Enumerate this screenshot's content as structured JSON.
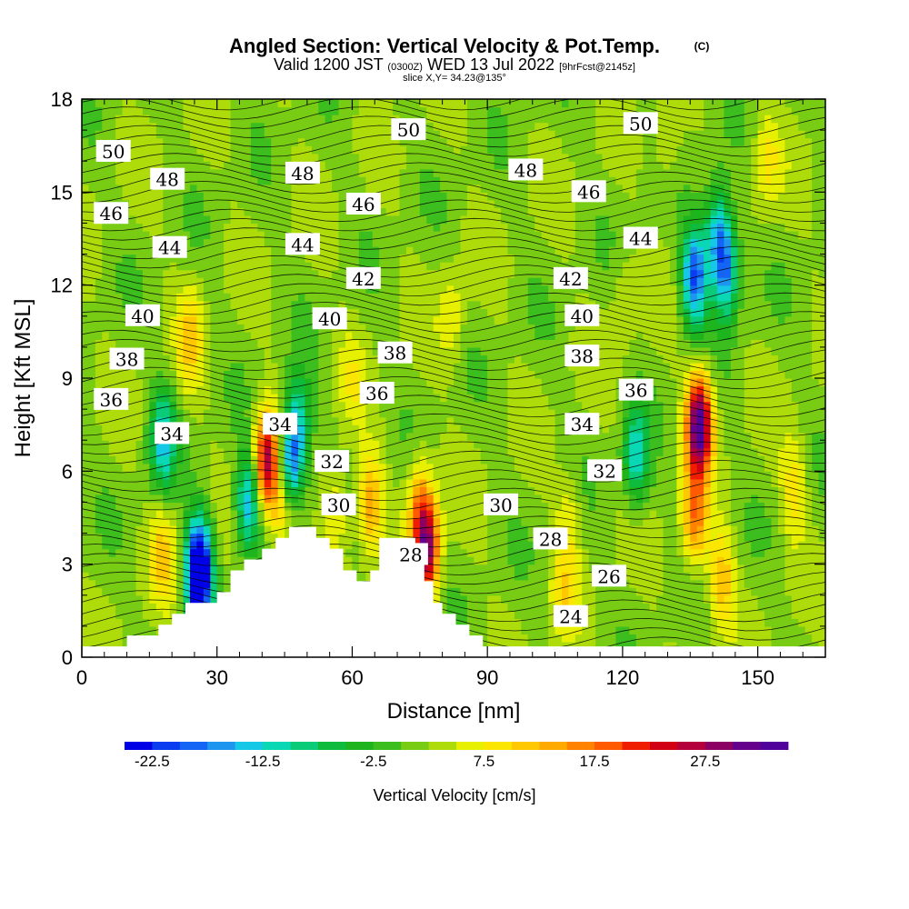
{
  "title": {
    "main": "Angled Section: Vertical Velocity & Pot.Temp.",
    "main_unit": "(C)",
    "valid_prefix": "Valid 1200 JST",
    "valid_utc": "(0300Z)",
    "valid_date": "WED 13 Jul 2022",
    "forecast": "[9hrFcst@2145z]",
    "slice": "slice X,Y= 34.23@135°"
  },
  "chart_data": {
    "type": "heatmap",
    "xlabel": "Distance [nm]",
    "ylabel": "Height [Kft MSL]",
    "xlim": [
      0,
      165
    ],
    "ylim": [
      0,
      18
    ],
    "xticks": [
      "0",
      "30",
      "60",
      "90",
      "120",
      "150"
    ],
    "yticks": [
      "0",
      "3",
      "6",
      "9",
      "12",
      "15",
      "18"
    ],
    "xtick_values": [
      0,
      30,
      60,
      90,
      120,
      150
    ],
    "ytick_values": [
      0,
      3,
      6,
      9,
      12,
      15,
      18
    ],
    "colorbar": {
      "label": "Vertical Velocity [cm/s]",
      "min": -25,
      "max": 35,
      "step": 2.5,
      "tick_labels": [
        "-22.5",
        "-12.5",
        "-2.5",
        "7.5",
        "17.5",
        "27.5"
      ],
      "tick_values": [
        -22.5,
        -12.5,
        -2.5,
        7.5,
        17.5,
        27.5
      ],
      "colors": [
        "#0000e6",
        "#0a3cf0",
        "#1464f5",
        "#1e96f0",
        "#14c8e6",
        "#0ad7b4",
        "#0acb78",
        "#0fbb3c",
        "#1eb41e",
        "#3cbe1e",
        "#78cc14",
        "#aedc0a",
        "#e6f000",
        "#fae600",
        "#ffc800",
        "#ffaa00",
        "#ff8200",
        "#ff5a00",
        "#f01e00",
        "#d20014",
        "#b4003c",
        "#8c0064",
        "#64008c",
        "#50009b"
      ]
    },
    "terrain_nm_kft": [
      [
        0,
        0.35
      ],
      [
        10,
        0.35
      ],
      [
        10,
        0.7
      ],
      [
        17,
        0.7
      ],
      [
        17,
        1.05
      ],
      [
        20,
        1.05
      ],
      [
        20,
        1.4
      ],
      [
        23,
        1.4
      ],
      [
        23,
        1.75
      ],
      [
        30,
        1.75
      ],
      [
        30,
        2.1
      ],
      [
        33,
        2.1
      ],
      [
        33,
        2.8
      ],
      [
        36,
        2.8
      ],
      [
        36,
        3.15
      ],
      [
        40,
        3.15
      ],
      [
        40,
        3.5
      ],
      [
        43,
        3.5
      ],
      [
        43,
        3.85
      ],
      [
        46,
        3.85
      ],
      [
        46,
        4.2
      ],
      [
        52,
        4.2
      ],
      [
        52,
        3.85
      ],
      [
        55,
        3.85
      ],
      [
        55,
        3.5
      ],
      [
        58,
        3.5
      ],
      [
        58,
        2.8
      ],
      [
        61,
        2.8
      ],
      [
        61,
        2.45
      ],
      [
        64,
        2.45
      ],
      [
        64,
        2.8
      ],
      [
        66,
        2.8
      ],
      [
        66,
        3.85
      ],
      [
        74,
        3.85
      ],
      [
        74,
        3.15
      ],
      [
        76,
        3.15
      ],
      [
        76,
        2.45
      ],
      [
        78,
        2.45
      ],
      [
        78,
        1.75
      ],
      [
        80,
        1.75
      ],
      [
        80,
        1.4
      ],
      [
        83,
        1.4
      ],
      [
        83,
        1.05
      ],
      [
        86,
        1.05
      ],
      [
        86,
        0.7
      ],
      [
        89,
        0.7
      ],
      [
        89,
        0.35
      ],
      [
        165,
        0.35
      ]
    ],
    "vertical_velocity_features": [
      {
        "x": 137,
        "y": 7.5,
        "value": 34
      },
      {
        "x": 136,
        "y": 4.5,
        "value": 16
      },
      {
        "x": 142,
        "y": 2.5,
        "value": 12
      },
      {
        "x": 41,
        "y": 6.3,
        "value": 27
      },
      {
        "x": 45,
        "y": 5.0,
        "value": 16
      },
      {
        "x": 76.5,
        "y": 3.5,
        "value": 28
      },
      {
        "x": 75,
        "y": 5.0,
        "value": 12
      },
      {
        "x": 64,
        "y": 5.0,
        "value": 14
      },
      {
        "x": 56.5,
        "y": 4.7,
        "value": 9
      },
      {
        "x": 37,
        "y": 5.0,
        "value": -16
      },
      {
        "x": 46,
        "y": 6.0,
        "value": -20
      },
      {
        "x": 48,
        "y": 7.5,
        "value": -12
      },
      {
        "x": 26,
        "y": 3.0,
        "value": -22
      },
      {
        "x": 26,
        "y": 2.3,
        "value": -14
      },
      {
        "x": 18,
        "y": 7.0,
        "value": -13
      },
      {
        "x": 18,
        "y": 3.4,
        "value": 10
      },
      {
        "x": 24,
        "y": 10.3,
        "value": 10
      },
      {
        "x": 123,
        "y": 6.5,
        "value": -12
      },
      {
        "x": 136,
        "y": 12.3,
        "value": -20
      },
      {
        "x": 143,
        "y": 12.5,
        "value": -16
      },
      {
        "x": 141,
        "y": 13.7,
        "value": -12
      },
      {
        "x": 108,
        "y": 4.5,
        "value": 7
      },
      {
        "x": 107,
        "y": 2.0,
        "value": 8
      },
      {
        "x": 60,
        "y": 9.0,
        "value": 6
      },
      {
        "x": 82,
        "y": 11.0,
        "value": 7
      },
      {
        "x": 120,
        "y": 11.5,
        "value": 5
      },
      {
        "x": 130,
        "y": 16.5,
        "value": 6
      },
      {
        "x": 158,
        "y": 5.5,
        "value": 9
      },
      {
        "x": 152,
        "y": 16.0,
        "value": 8
      }
    ],
    "potential_temperature_levels": [
      24,
      26,
      28,
      30,
      32,
      34,
      36,
      38,
      40,
      42,
      44,
      46,
      48,
      50
    ],
    "potential_temperature_labels": [
      {
        "text": "50",
        "x": 7,
        "y": 16.3
      },
      {
        "text": "48",
        "x": 19,
        "y": 15.4
      },
      {
        "text": "46",
        "x": 6.5,
        "y": 14.3
      },
      {
        "text": "44",
        "x": 19.5,
        "y": 13.2
      },
      {
        "text": "40",
        "x": 13.5,
        "y": 11.0
      },
      {
        "text": "38",
        "x": 10,
        "y": 9.6
      },
      {
        "text": "36",
        "x": 6.5,
        "y": 8.3
      },
      {
        "text": "34",
        "x": 20,
        "y": 7.2
      },
      {
        "text": "34",
        "x": 44,
        "y": 7.5
      },
      {
        "text": "48",
        "x": 49,
        "y": 15.6
      },
      {
        "text": "44",
        "x": 49,
        "y": 13.3
      },
      {
        "text": "46",
        "x": 62.5,
        "y": 14.6
      },
      {
        "text": "42",
        "x": 62.5,
        "y": 12.2
      },
      {
        "text": "40",
        "x": 55,
        "y": 10.9
      },
      {
        "text": "38",
        "x": 69.5,
        "y": 9.8
      },
      {
        "text": "36",
        "x": 65.5,
        "y": 8.5
      },
      {
        "text": "32",
        "x": 55.5,
        "y": 6.3
      },
      {
        "text": "30",
        "x": 57,
        "y": 4.9
      },
      {
        "text": "28",
        "x": 73,
        "y": 3.3
      },
      {
        "text": "50",
        "x": 72.5,
        "y": 17.0
      },
      {
        "text": "48",
        "x": 98.5,
        "y": 15.7
      },
      {
        "text": "46",
        "x": 112.5,
        "y": 15.0
      },
      {
        "text": "42",
        "x": 108.5,
        "y": 12.2
      },
      {
        "text": "40",
        "x": 111,
        "y": 11.0
      },
      {
        "text": "38",
        "x": 111,
        "y": 9.7
      },
      {
        "text": "34",
        "x": 111,
        "y": 7.5
      },
      {
        "text": "32",
        "x": 116,
        "y": 6.0
      },
      {
        "text": "30",
        "x": 93,
        "y": 4.9
      },
      {
        "text": "28",
        "x": 104,
        "y": 3.8
      },
      {
        "text": "26",
        "x": 117,
        "y": 2.6
      },
      {
        "text": "24",
        "x": 108.5,
        "y": 1.3
      },
      {
        "text": "50",
        "x": 124,
        "y": 17.2
      },
      {
        "text": "44",
        "x": 124,
        "y": 13.5
      },
      {
        "text": "36",
        "x": 123,
        "y": 8.6
      }
    ]
  }
}
